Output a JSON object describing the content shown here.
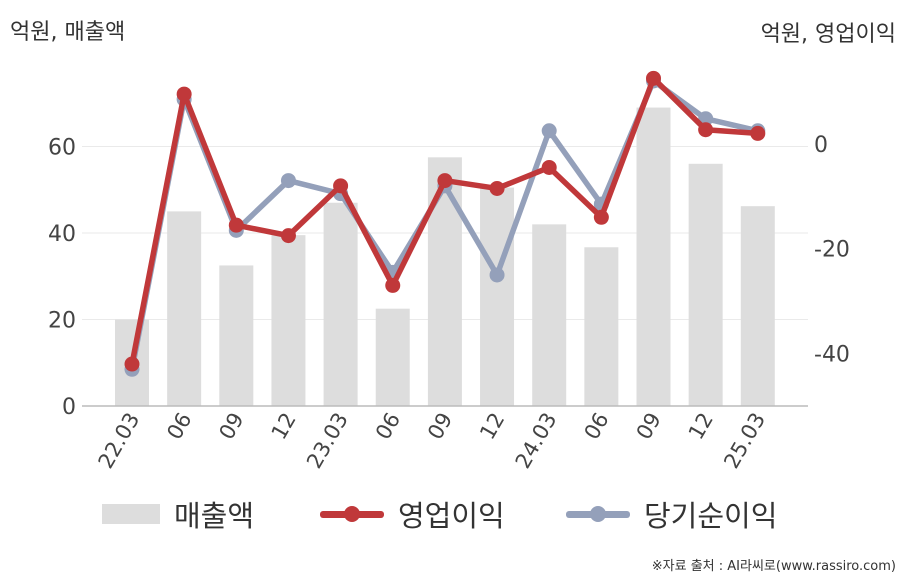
{
  "units": {
    "left": "억원, 매출액",
    "right": "억원, 영업이익"
  },
  "legend": [
    {
      "name": "매출액",
      "kind": "bar",
      "color": "#dddddd"
    },
    {
      "name": "영업이익",
      "kind": "line",
      "color": "#c0383a"
    },
    {
      "name": "당기순이익",
      "kind": "line",
      "color": "#94a0ba"
    }
  ],
  "source": "※자료 출처 : AI라씨로(www.rassiro.com)",
  "chart_data": {
    "type": "bar",
    "categories": [
      "22.03",
      "06",
      "09",
      "12",
      "23.03",
      "06",
      "09",
      "12",
      "24.03",
      "06",
      "09",
      "12",
      "25.03"
    ],
    "y_left": {
      "ticks": [
        0,
        20,
        40,
        60
      ],
      "range": [
        0,
        80
      ]
    },
    "y_right": {
      "ticks": [
        0,
        -20,
        -40
      ],
      "range": [
        -50,
        16
      ]
    },
    "grid": true,
    "legend_position": "bottom",
    "series": [
      {
        "name": "매출액",
        "type": "bar",
        "axis": "left",
        "color": "#dddddd",
        "values": [
          20,
          45,
          32.5,
          39.5,
          47,
          22.5,
          57.5,
          50.5,
          42,
          36.7,
          69,
          56,
          46.2
        ]
      },
      {
        "name": "영업이익",
        "type": "line",
        "axis": "right",
        "color": "#c0383a",
        "values": [
          -42,
          9.5,
          -15.5,
          -17.5,
          -8,
          -27,
          -7,
          -8.5,
          -4.5,
          -14,
          12.5,
          2.7,
          2
        ]
      },
      {
        "name": "당기순이익",
        "type": "line",
        "axis": "right",
        "color": "#94a0ba",
        "values": [
          -43,
          8.5,
          -16.5,
          -7,
          -9.5,
          -24.5,
          -8,
          -25,
          2.5,
          -11.5,
          12,
          4.8,
          2.5
        ]
      }
    ]
  }
}
